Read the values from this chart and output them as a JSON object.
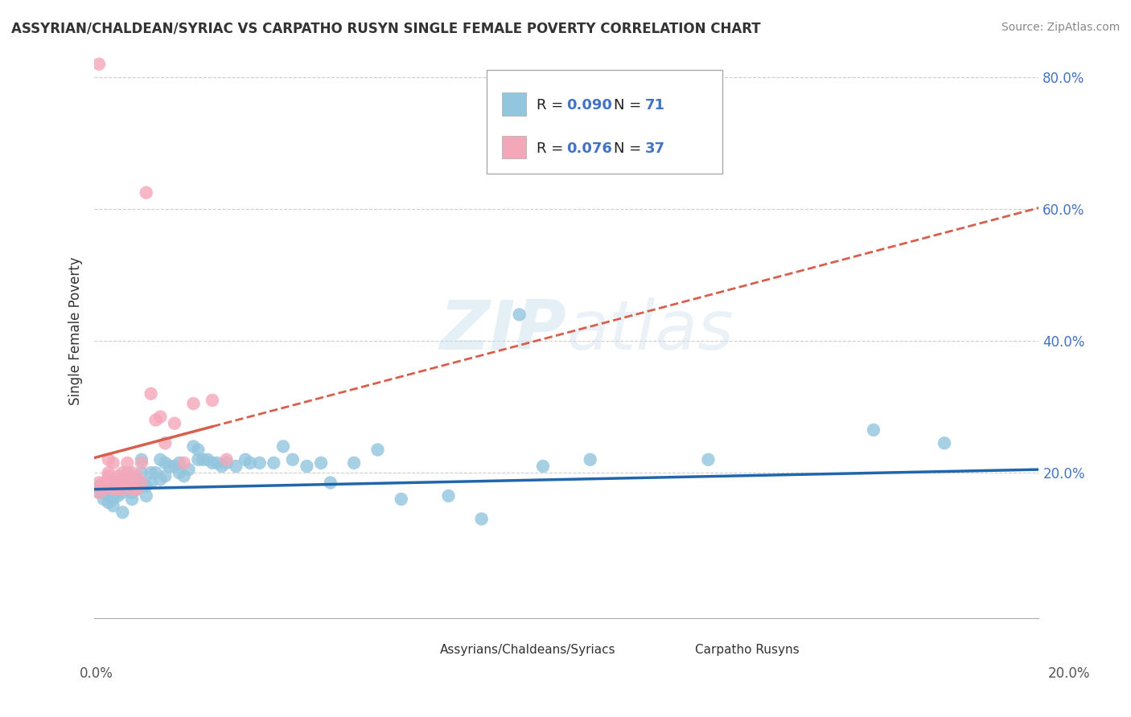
{
  "title": "ASSYRIAN/CHALDEAN/SYRIAC VS CARPATHO RUSYN SINGLE FEMALE POVERTY CORRELATION CHART",
  "source": "Source: ZipAtlas.com",
  "ylabel": "Single Female Poverty",
  "xlim": [
    0.0,
    0.2
  ],
  "ylim": [
    -0.02,
    0.85
  ],
  "ytick_vals": [
    0.2,
    0.4,
    0.6,
    0.8
  ],
  "ytick_labels": [
    "20.0%",
    "40.0%",
    "60.0%",
    "80.0%"
  ],
  "blue_color": "#92c5de",
  "pink_color": "#f4a7b9",
  "blue_line_color": "#2166ac",
  "pink_line_color": "#d6604d",
  "watermark_zip": "ZIP",
  "watermark_atlas": "atlas",
  "blue_scatter_x": [
    0.001,
    0.001,
    0.002,
    0.002,
    0.003,
    0.003,
    0.003,
    0.004,
    0.004,
    0.004,
    0.005,
    0.005,
    0.005,
    0.006,
    0.006,
    0.007,
    0.007,
    0.007,
    0.008,
    0.008,
    0.008,
    0.009,
    0.009,
    0.01,
    0.01,
    0.01,
    0.011,
    0.011,
    0.012,
    0.012,
    0.013,
    0.014,
    0.014,
    0.015,
    0.015,
    0.016,
    0.017,
    0.018,
    0.018,
    0.019,
    0.02,
    0.021,
    0.022,
    0.022,
    0.023,
    0.024,
    0.025,
    0.026,
    0.027,
    0.028,
    0.03,
    0.032,
    0.033,
    0.035,
    0.038,
    0.04,
    0.042,
    0.045,
    0.048,
    0.05,
    0.055,
    0.06,
    0.065,
    0.075,
    0.082,
    0.09,
    0.095,
    0.105,
    0.13,
    0.165,
    0.18
  ],
  "blue_scatter_y": [
    0.18,
    0.17,
    0.17,
    0.16,
    0.175,
    0.165,
    0.155,
    0.18,
    0.16,
    0.15,
    0.19,
    0.175,
    0.165,
    0.17,
    0.14,
    0.2,
    0.19,
    0.175,
    0.17,
    0.16,
    0.175,
    0.19,
    0.175,
    0.22,
    0.2,
    0.185,
    0.18,
    0.165,
    0.2,
    0.185,
    0.2,
    0.22,
    0.19,
    0.215,
    0.195,
    0.21,
    0.21,
    0.215,
    0.2,
    0.195,
    0.205,
    0.24,
    0.235,
    0.22,
    0.22,
    0.22,
    0.215,
    0.215,
    0.21,
    0.215,
    0.21,
    0.22,
    0.215,
    0.215,
    0.215,
    0.24,
    0.22,
    0.21,
    0.215,
    0.185,
    0.215,
    0.235,
    0.16,
    0.165,
    0.13,
    0.44,
    0.21,
    0.22,
    0.22,
    0.265,
    0.245
  ],
  "pink_scatter_x": [
    0.001,
    0.001,
    0.001,
    0.002,
    0.002,
    0.003,
    0.003,
    0.003,
    0.004,
    0.004,
    0.004,
    0.005,
    0.005,
    0.005,
    0.006,
    0.006,
    0.006,
    0.007,
    0.007,
    0.007,
    0.008,
    0.008,
    0.008,
    0.009,
    0.009,
    0.01,
    0.01,
    0.011,
    0.012,
    0.013,
    0.014,
    0.015,
    0.017,
    0.019,
    0.021,
    0.025,
    0.028
  ],
  "pink_scatter_y": [
    0.82,
    0.185,
    0.17,
    0.185,
    0.175,
    0.195,
    0.2,
    0.22,
    0.185,
    0.215,
    0.175,
    0.195,
    0.185,
    0.175,
    0.2,
    0.185,
    0.175,
    0.215,
    0.195,
    0.185,
    0.2,
    0.185,
    0.175,
    0.195,
    0.175,
    0.215,
    0.185,
    0.625,
    0.32,
    0.28,
    0.285,
    0.245,
    0.275,
    0.215,
    0.305,
    0.31,
    0.22
  ],
  "background_color": "#ffffff",
  "grid_color": "#cccccc"
}
